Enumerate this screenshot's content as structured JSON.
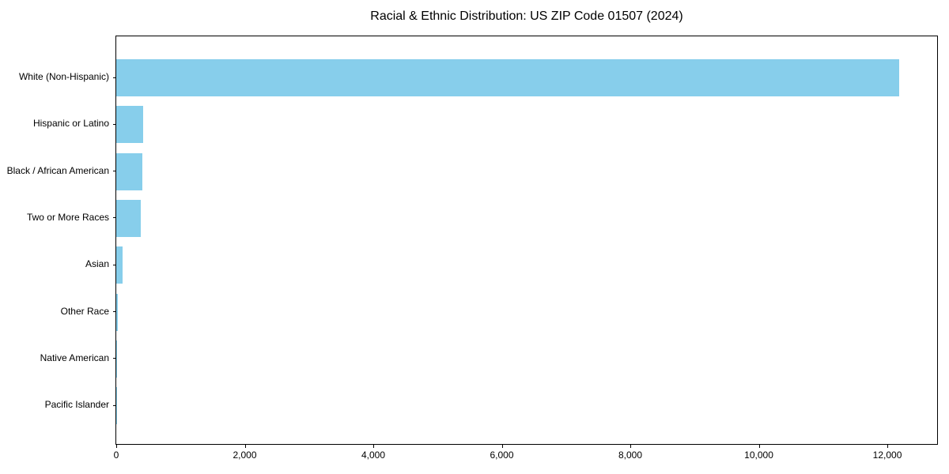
{
  "chart_data": {
    "type": "bar",
    "orientation": "horizontal",
    "title": "Racial & Ethnic Distribution: US ZIP Code 01507 (2024)",
    "categories": [
      "White (Non-Hispanic)",
      "Hispanic or Latino",
      "Black / African American",
      "Two or More Races",
      "Asian",
      "Other Race",
      "Native American",
      "Pacific Islander"
    ],
    "values": [
      12180,
      415,
      410,
      385,
      100,
      20,
      5,
      2
    ],
    "xlabel": "",
    "ylabel": "",
    "xlim": [
      0,
      12775
    ],
    "x_ticks": [
      0,
      2000,
      4000,
      6000,
      8000,
      10000,
      12000
    ],
    "x_tick_labels": [
      "0",
      "2,000",
      "4,000",
      "6,000",
      "8,000",
      "10,000",
      "12,000"
    ],
    "bar_color": "#87CEEB",
    "text_color": "#000000",
    "spine_color": "#000000",
    "grid": false,
    "legend": null
  }
}
